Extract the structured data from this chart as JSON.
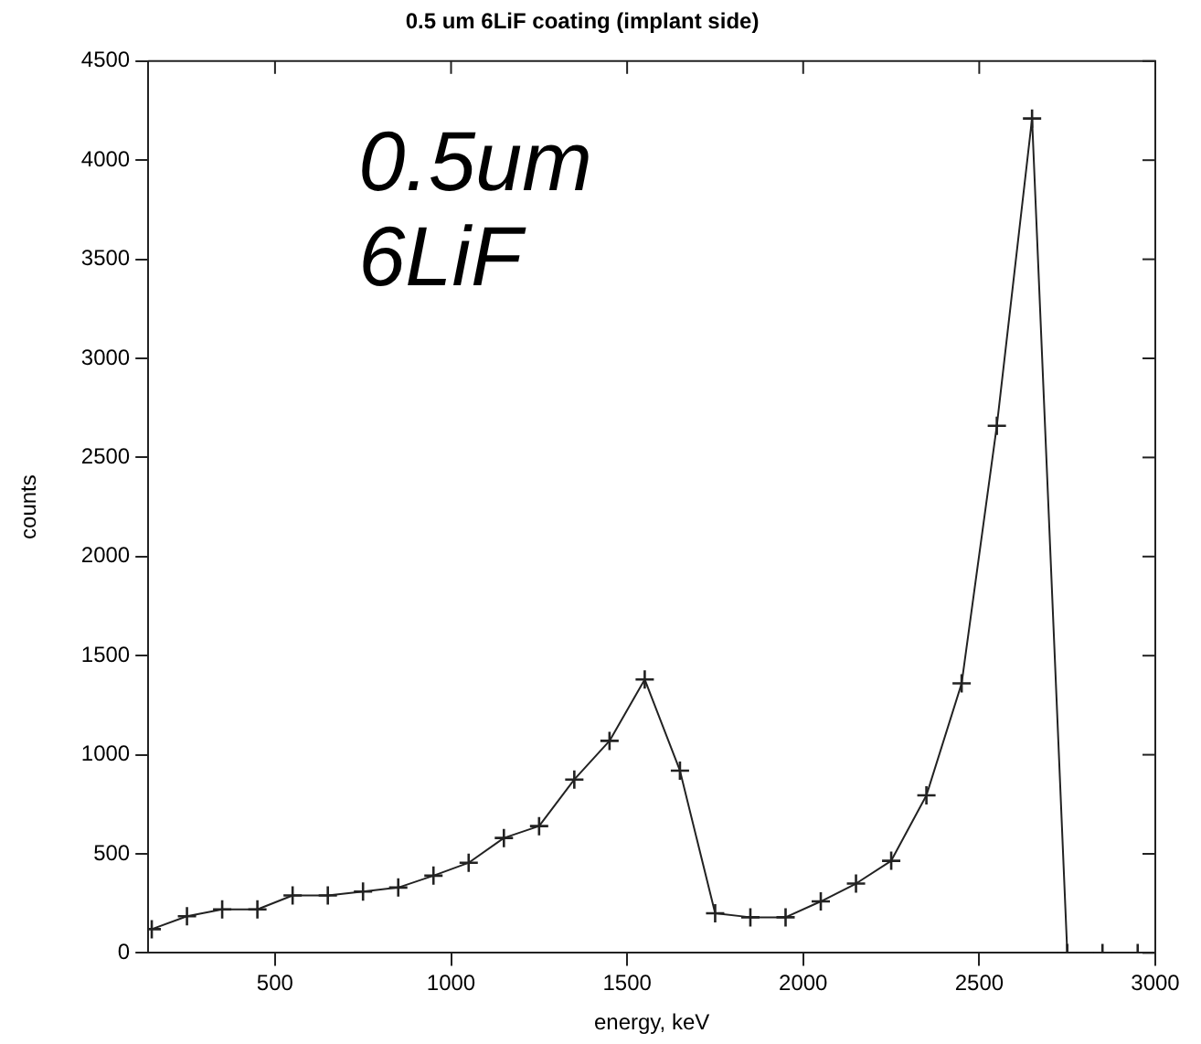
{
  "chart_data": {
    "type": "line",
    "title": "0.5 um 6LiF coating (implant side)",
    "xlabel": "energy, keV",
    "ylabel": "counts",
    "annotations": [
      "0.5um\n6LiF"
    ],
    "x": [
      150,
      250,
      350,
      450,
      550,
      650,
      750,
      850,
      950,
      1050,
      1150,
      1250,
      1350,
      1450,
      1550,
      1650,
      1750,
      1850,
      1950,
      2050,
      2150,
      2250,
      2350,
      2450,
      2550,
      2650,
      2750,
      2850,
      2950
    ],
    "series": [
      {
        "color": "#222222",
        "values": [
          120,
          185,
          220,
          220,
          290,
          290,
          310,
          330,
          390,
          455,
          580,
          640,
          875,
          1070,
          1380,
          920,
          200,
          180,
          180,
          260,
          350,
          465,
          795,
          1360,
          2660,
          4210,
          0,
          0,
          0
        ]
      }
    ],
    "xlim": [
      140,
      3000
    ],
    "xticks": [
      500,
      1000,
      1500,
      2000,
      2500,
      3000
    ],
    "ylim": [
      0,
      4500
    ],
    "yticks": [
      0,
      500,
      1000,
      1500,
      2000,
      2500,
      3000,
      3500,
      4000,
      4500
    ],
    "grid": false,
    "legend": false,
    "marker": "cross",
    "line_style": "solid"
  }
}
